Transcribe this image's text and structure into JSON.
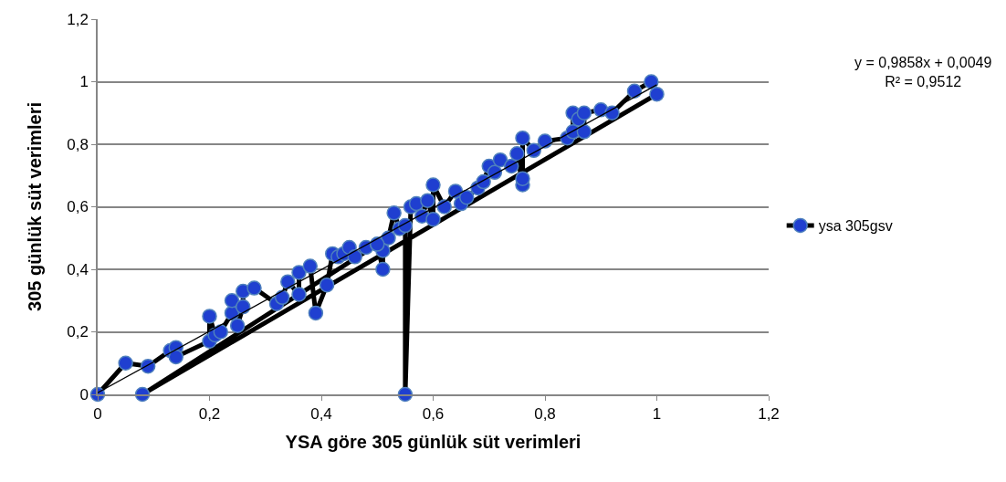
{
  "chart_data": {
    "type": "line",
    "xlabel": "YSA göre 305 günlük süt verimleri",
    "ylabel": "305 günlük süt verimleri",
    "annotations": [
      "y = 0,9858x + 0,0049\nR² = 0,9512"
    ],
    "series": [
      {
        "name": "ysa 305gsv",
        "color": "#1f3fd0",
        "marker": "circle",
        "x": [
          0,
          0.05,
          0.09,
          0.13,
          0.14,
          0.14,
          0.2,
          0.2,
          0.21,
          0.22,
          0.24,
          0.24,
          0.25,
          0.26,
          0.26,
          0.28,
          0.32,
          0.33,
          0.34,
          0.36,
          0.36,
          0.38,
          0.39,
          0.41,
          0.42,
          0.43,
          0.44,
          0.45,
          0.46,
          0.48,
          0.5,
          0.51,
          0.51,
          0.52,
          0.53,
          0.54,
          0.55,
          0.55,
          0.56,
          0.57,
          0.58,
          0.59,
          0.6,
          0.6,
          0.62,
          0.64,
          0.65,
          0.66,
          0.68,
          0.69,
          0.7,
          0.71,
          0.72,
          0.74,
          0.75,
          0.76,
          0.76,
          0.76,
          0.78,
          0.8,
          0.84,
          0.85,
          0.85,
          0.86,
          0.87,
          0.87,
          0.9,
          0.92,
          0.96,
          0.99,
          1.0,
          0.08,
          0.5
        ],
        "values": [
          0,
          0.1,
          0.09,
          0.14,
          0.15,
          0.12,
          0.17,
          0.25,
          0.19,
          0.2,
          0.26,
          0.3,
          0.22,
          0.28,
          0.33,
          0.34,
          0.29,
          0.31,
          0.36,
          0.32,
          0.39,
          0.41,
          0.26,
          0.35,
          0.45,
          0.44,
          0.45,
          0.47,
          0.44,
          0.47,
          0.48,
          0.4,
          0.46,
          0.5,
          0.58,
          0.53,
          0.54,
          0,
          0.6,
          0.61,
          0.57,
          0.62,
          0.56,
          0.67,
          0.6,
          0.65,
          0.61,
          0.63,
          0.66,
          0.68,
          0.73,
          0.71,
          0.75,
          0.73,
          0.77,
          0.67,
          0.69,
          0.82,
          0.78,
          0.81,
          0.82,
          0.84,
          0.9,
          0.88,
          0.84,
          0.9,
          0.91,
          0.9,
          0.97,
          1.0,
          0.96,
          0,
          0.48
        ]
      },
      {
        "color": "#000000",
        "marker": "none",
        "x": [
          0,
          1
        ],
        "values": [
          0.005,
          0.99
        ]
      }
    ],
    "xlim": [
      0,
      1.2
    ],
    "ylim": [
      0,
      1.2
    ],
    "xticks": [
      0,
      {
        "value": 0.2,
        "label": "0,2"
      },
      {
        "value": 0.4,
        "label": "0,4"
      },
      {
        "value": 0.6,
        "label": "0,6"
      },
      {
        "value": 0.8,
        "label": "0,8"
      },
      1,
      {
        "value": 1.2,
        "label": "1,2"
      }
    ],
    "yticks": [
      0,
      {
        "value": 0.2,
        "label": "0,2"
      },
      {
        "value": 0.4,
        "label": "0,4"
      },
      {
        "value": 0.6,
        "label": "0,6"
      },
      {
        "value": 0.8,
        "label": "0,8"
      },
      1,
      {
        "value": 1.2,
        "label": "1,2"
      }
    ],
    "grid": "y",
    "legend": "right"
  }
}
